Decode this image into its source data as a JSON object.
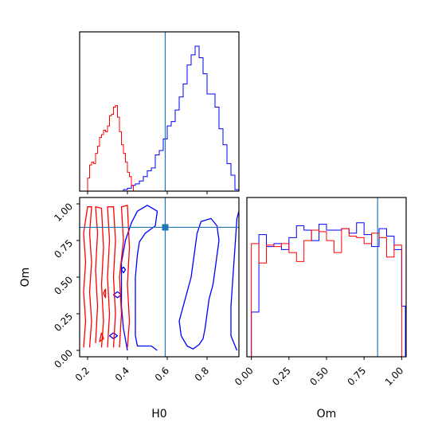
{
  "chart_data": {
    "type": "corner",
    "colors": {
      "series_a": "#0000ff",
      "series_b": "#ff0000",
      "truth": "#1f77b4"
    },
    "truth": {
      "H0": 0.59,
      "Om": 0.84
    },
    "xlabels": {
      "bottom_left": "H0",
      "bottom_right": "Om"
    },
    "ylabels": {
      "bottom_left": "Om"
    },
    "ticks": {
      "H0": [
        "0.2",
        "0.4",
        "0.6",
        "0.8"
      ],
      "Om": [
        "0.00",
        "0.25",
        "0.50",
        "0.75",
        "1.00"
      ]
    },
    "panels": [
      {
        "type": "histogram",
        "variable": "H0",
        "xlim": [
          0.16,
          0.96
        ],
        "bin_width": 0.02,
        "series": [
          {
            "color": "blue",
            "bins": [
              [
                0.16,
                0.0
              ],
              [
                0.38,
                0.01
              ],
              [
                0.4,
                0.02
              ],
              [
                0.42,
                0.04
              ],
              [
                0.44,
                0.05
              ],
              [
                0.46,
                0.07
              ],
              [
                0.48,
                0.1
              ],
              [
                0.5,
                0.14
              ],
              [
                0.52,
                0.16
              ],
              [
                0.54,
                0.25
              ],
              [
                0.56,
                0.28
              ],
              [
                0.58,
                0.36
              ],
              [
                0.6,
                0.45
              ],
              [
                0.62,
                0.48
              ],
              [
                0.64,
                0.56
              ],
              [
                0.66,
                0.65
              ],
              [
                0.68,
                0.74
              ],
              [
                0.7,
                0.87
              ],
              [
                0.72,
                0.94
              ],
              [
                0.74,
                1.0
              ],
              [
                0.76,
                0.92
              ],
              [
                0.78,
                0.81
              ],
              [
                0.8,
                0.67
              ],
              [
                0.82,
                0.67
              ],
              [
                0.84,
                0.58
              ],
              [
                0.86,
                0.43
              ],
              [
                0.88,
                0.32
              ],
              [
                0.9,
                0.19
              ],
              [
                0.92,
                0.11
              ],
              [
                0.94,
                0.01
              ]
            ]
          },
          {
            "color": "red",
            "bins": [
              [
                0.2,
                0.09
              ],
              [
                0.21,
                0.18
              ],
              [
                0.22,
                0.2
              ],
              [
                0.23,
                0.19
              ],
              [
                0.24,
                0.26
              ],
              [
                0.25,
                0.31
              ],
              [
                0.26,
                0.37
              ],
              [
                0.27,
                0.39
              ],
              [
                0.28,
                0.42
              ],
              [
                0.29,
                0.41
              ],
              [
                0.3,
                0.45
              ],
              [
                0.31,
                0.52
              ],
              [
                0.32,
                0.53
              ],
              [
                0.33,
                0.58
              ],
              [
                0.34,
                0.59
              ],
              [
                0.35,
                0.51
              ],
              [
                0.36,
                0.41
              ],
              [
                0.37,
                0.32
              ],
              [
                0.38,
                0.26
              ],
              [
                0.39,
                0.2
              ],
              [
                0.4,
                0.13
              ],
              [
                0.41,
                0.1
              ],
              [
                0.42,
                0.04
              ]
            ]
          }
        ]
      },
      {
        "type": "contour",
        "x": "H0",
        "y": "Om",
        "xlim": [
          0.16,
          0.96
        ],
        "ylim": [
          0.0,
          1.0
        ],
        "series": [
          {
            "color": "blue",
            "levels": [
              [
                [
                  0.4,
                  0.0
                ],
                [
                  0.38,
                  0.15
                ],
                [
                  0.37,
                  0.3
                ],
                [
                  0.37,
                  0.45
                ],
                [
                  0.37,
                  0.6
                ],
                [
                  0.39,
                  0.75
                ],
                [
                  0.42,
                  0.87
                ],
                [
                  0.45,
                  0.95
                ],
                [
                  0.5,
                  0.99
                ],
                [
                  0.55,
                  0.95
                ],
                [
                  0.54,
                  0.85
                ],
                [
                  0.49,
                  0.8
                ],
                [
                  0.46,
                  0.74
                ],
                [
                  0.45,
                  0.65
                ],
                [
                  0.44,
                  0.5
                ],
                [
                  0.44,
                  0.35
                ],
                [
                  0.44,
                  0.2
                ],
                [
                  0.44,
                  0.1
                ],
                [
                  0.45,
                  0.03
                ],
                [
                  0.52,
                  0.03
                ],
                [
                  0.55,
                  0.0
                ]
              ],
              [
                [
                  0.7,
                  0.03
                ],
                [
                  0.67,
                  0.1
                ],
                [
                  0.66,
                  0.2
                ],
                [
                  0.68,
                  0.3
                ],
                [
                  0.7,
                  0.4
                ],
                [
                  0.72,
                  0.5
                ],
                [
                  0.73,
                  0.6
                ],
                [
                  0.74,
                  0.7
                ],
                [
                  0.75,
                  0.8
                ],
                [
                  0.77,
                  0.88
                ],
                [
                  0.82,
                  0.9
                ],
                [
                  0.85,
                  0.85
                ],
                [
                  0.86,
                  0.75
                ],
                [
                  0.85,
                  0.65
                ],
                [
                  0.84,
                  0.55
                ],
                [
                  0.83,
                  0.45
                ],
                [
                  0.81,
                  0.35
                ],
                [
                  0.8,
                  0.25
                ],
                [
                  0.79,
                  0.15
                ],
                [
                  0.78,
                  0.08
                ],
                [
                  0.76,
                  0.04
                ],
                [
                  0.73,
                  0.01
                ],
                [
                  0.7,
                  0.03
                ]
              ],
              [
                [
                  0.95,
                  0.0
                ],
                [
                  0.92,
                  0.1
                ],
                [
                  0.92,
                  0.3
                ],
                [
                  0.93,
                  0.5
                ],
                [
                  0.94,
                  0.7
                ],
                [
                  0.95,
                  0.9
                ],
                [
                  0.96,
                  0.95
                ]
              ],
              [
                [
                  0.35,
                  0.4
                ],
                [
                  0.37,
                  0.38
                ],
                [
                  0.35,
                  0.36
                ],
                [
                  0.33,
                  0.38
                ],
                [
                  0.35,
                  0.4
                ]
              ],
              [
                [
                  0.38,
                  0.57
                ],
                [
                  0.39,
                  0.55
                ],
                [
                  0.38,
                  0.53
                ],
                [
                  0.37,
                  0.55
                ],
                [
                  0.38,
                  0.57
                ]
              ],
              [
                [
                  0.33,
                  0.12
                ],
                [
                  0.35,
                  0.1
                ],
                [
                  0.33,
                  0.08
                ],
                [
                  0.31,
                  0.1
                ],
                [
                  0.33,
                  0.12
                ]
              ]
            ]
          },
          {
            "color": "red",
            "levels": [
              [
                [
                  0.18,
                  0.02
                ],
                [
                  0.19,
                  0.2
                ],
                [
                  0.18,
                  0.4
                ],
                [
                  0.19,
                  0.6
                ],
                [
                  0.18,
                  0.8
                ],
                [
                  0.2,
                  0.98
                ],
                [
                  0.22,
                  0.98
                ],
                [
                  0.21,
                  0.8
                ],
                [
                  0.22,
                  0.6
                ],
                [
                  0.21,
                  0.4
                ],
                [
                  0.22,
                  0.2
                ],
                [
                  0.21,
                  0.02
                ]
              ],
              [
                [
                  0.24,
                  0.05
                ],
                [
                  0.25,
                  0.3
                ],
                [
                  0.24,
                  0.55
                ],
                [
                  0.25,
                  0.8
                ],
                [
                  0.24,
                  0.98
                ],
                [
                  0.27,
                  0.97
                ],
                [
                  0.28,
                  0.7
                ],
                [
                  0.27,
                  0.45
                ],
                [
                  0.28,
                  0.2
                ],
                [
                  0.27,
                  0.02
                ]
              ],
              [
                [
                  0.3,
                  0.02
                ],
                [
                  0.31,
                  0.25
                ],
                [
                  0.3,
                  0.5
                ],
                [
                  0.31,
                  0.75
                ],
                [
                  0.3,
                  0.98
                ],
                [
                  0.33,
                  0.98
                ],
                [
                  0.34,
                  0.75
                ],
                [
                  0.33,
                  0.5
                ],
                [
                  0.34,
                  0.25
                ],
                [
                  0.33,
                  0.02
                ]
              ],
              [
                [
                  0.36,
                  0.02
                ],
                [
                  0.37,
                  0.25
                ],
                [
                  0.36,
                  0.5
                ],
                [
                  0.38,
                  0.75
                ],
                [
                  0.37,
                  0.98
                ],
                [
                  0.4,
                  0.99
                ],
                [
                  0.41,
                  0.7
                ],
                [
                  0.4,
                  0.45
                ],
                [
                  0.41,
                  0.2
                ],
                [
                  0.4,
                  0.02
                ]
              ],
              [
                [
                  0.29,
                  0.42
                ],
                [
                  0.29,
                  0.36
                ],
                [
                  0.28,
                  0.39
                ],
                [
                  0.29,
                  0.42
                ]
              ],
              [
                [
                  0.27,
                  0.12
                ],
                [
                  0.28,
                  0.08
                ],
                [
                  0.26,
                  0.06
                ],
                [
                  0.27,
                  0.12
                ]
              ]
            ]
          }
        ]
      },
      {
        "type": "histogram",
        "variable": "Om",
        "xlim": [
          -0.03,
          1.03
        ],
        "bin_width": 0.05,
        "series": [
          {
            "color": "blue",
            "bins": [
              [
                0.0,
                0.3
              ],
              [
                0.05,
                0.82
              ],
              [
                0.1,
                0.74
              ],
              [
                0.15,
                0.76
              ],
              [
                0.2,
                0.72
              ],
              [
                0.25,
                0.8
              ],
              [
                0.3,
                0.88
              ],
              [
                0.35,
                0.85
              ],
              [
                0.4,
                0.78
              ],
              [
                0.45,
                0.89
              ],
              [
                0.5,
                0.85
              ],
              [
                0.55,
                0.85
              ],
              [
                0.6,
                0.86
              ],
              [
                0.65,
                0.83
              ],
              [
                0.7,
                0.9
              ],
              [
                0.75,
                0.82
              ],
              [
                0.8,
                0.74
              ],
              [
                0.85,
                0.86
              ],
              [
                0.9,
                0.81
              ],
              [
                0.95,
                0.72
              ],
              [
                1.0,
                0.34
              ]
            ]
          },
          {
            "color": "red",
            "bins": [
              [
                0.0,
                0.76
              ],
              [
                0.05,
                0.63
              ],
              [
                0.1,
                0.75
              ],
              [
                0.15,
                0.74
              ],
              [
                0.2,
                0.76
              ],
              [
                0.25,
                0.7
              ],
              [
                0.3,
                0.64
              ],
              [
                0.35,
                0.78
              ],
              [
                0.4,
                0.85
              ],
              [
                0.45,
                0.84
              ],
              [
                0.5,
                0.78
              ],
              [
                0.55,
                0.7
              ],
              [
                0.6,
                0.86
              ],
              [
                0.65,
                0.81
              ],
              [
                0.7,
                0.8
              ],
              [
                0.75,
                0.76
              ],
              [
                0.8,
                0.83
              ],
              [
                0.85,
                0.8
              ],
              [
                0.9,
                0.67
              ],
              [
                0.95,
                0.75
              ],
              [
                1.0,
                0.0
              ]
            ]
          }
        ]
      }
    ]
  }
}
